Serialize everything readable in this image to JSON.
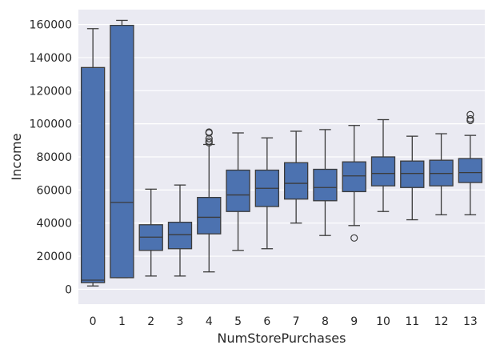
{
  "chart_data": {
    "type": "box",
    "xlabel": "NumStorePurchases",
    "ylabel": "Income",
    "categories": [
      "0",
      "1",
      "2",
      "3",
      "4",
      "5",
      "6",
      "7",
      "8",
      "9",
      "10",
      "11",
      "12",
      "13"
    ],
    "ylim": [
      -9000,
      169000
    ],
    "yticks": [
      0,
      20000,
      40000,
      60000,
      80000,
      100000,
      120000,
      140000,
      160000
    ],
    "ytick_labels": [
      "0",
      "20000",
      "40000",
      "60000",
      "80000",
      "100000",
      "120000",
      "140000",
      "160000"
    ],
    "grid": true,
    "background": "#EAEAF2",
    "box_color": "#4C72B0",
    "line_color": "#3b3b3b",
    "boxes": [
      {
        "category": "0",
        "whisker_low": 2000,
        "q1": 4000,
        "median": 5500,
        "q3": 134000,
        "whisker_high": 157500,
        "outliers": []
      },
      {
        "category": "1",
        "whisker_low": 7000,
        "q1": 7000,
        "median": 52500,
        "q3": 159500,
        "whisker_high": 162500,
        "outliers": []
      },
      {
        "category": "2",
        "whisker_low": 8000,
        "q1": 23500,
        "median": 31500,
        "q3": 39000,
        "whisker_high": 60500,
        "outliers": []
      },
      {
        "category": "3",
        "whisker_low": 8000,
        "q1": 24500,
        "median": 33000,
        "q3": 40500,
        "whisker_high": 63000,
        "outliers": []
      },
      {
        "category": "4",
        "whisker_low": 10500,
        "q1": 33500,
        "median": 43500,
        "q3": 55500,
        "whisker_high": 87500,
        "outliers": [
          88500,
          89500,
          91000,
          94500,
          95000
        ]
      },
      {
        "category": "5",
        "whisker_low": 23500,
        "q1": 47000,
        "median": 57000,
        "q3": 72000,
        "whisker_high": 94500,
        "outliers": []
      },
      {
        "category": "6",
        "whisker_low": 24500,
        "q1": 50000,
        "median": 61000,
        "q3": 72000,
        "whisker_high": 91500,
        "outliers": []
      },
      {
        "category": "7",
        "whisker_low": 40000,
        "q1": 54500,
        "median": 64000,
        "q3": 76500,
        "whisker_high": 95500,
        "outliers": []
      },
      {
        "category": "8",
        "whisker_low": 32500,
        "q1": 53500,
        "median": 61500,
        "q3": 72500,
        "whisker_high": 96500,
        "outliers": []
      },
      {
        "category": "9",
        "whisker_low": 38500,
        "q1": 59000,
        "median": 68500,
        "q3": 77000,
        "whisker_high": 99000,
        "outliers": [
          31000
        ]
      },
      {
        "category": "10",
        "whisker_low": 47000,
        "q1": 62500,
        "median": 70000,
        "q3": 80000,
        "whisker_high": 102500,
        "outliers": []
      },
      {
        "category": "11",
        "whisker_low": 42000,
        "q1": 61500,
        "median": 70000,
        "q3": 77500,
        "whisker_high": 92500,
        "outliers": []
      },
      {
        "category": "12",
        "whisker_low": 45000,
        "q1": 62500,
        "median": 70000,
        "q3": 78000,
        "whisker_high": 94000,
        "outliers": []
      },
      {
        "category": "13",
        "whisker_low": 45000,
        "q1": 64500,
        "median": 70500,
        "q3": 79000,
        "whisker_high": 93000,
        "outliers": [
          102000,
          103000,
          105500
        ]
      }
    ]
  }
}
